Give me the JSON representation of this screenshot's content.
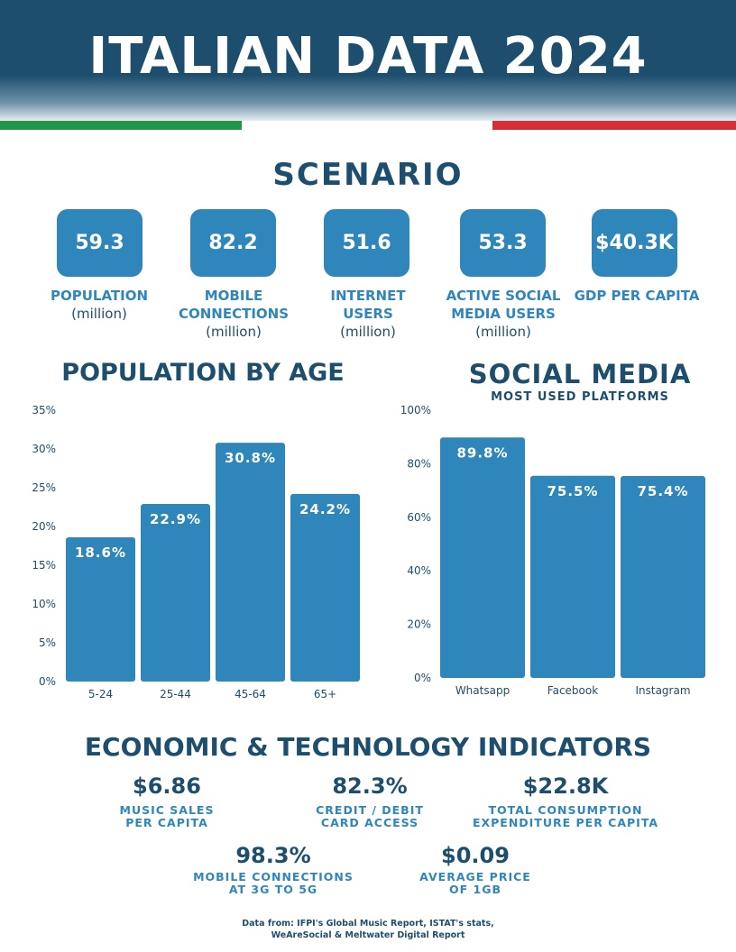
{
  "title": "ITALIAN DATA 2024",
  "colors": {
    "navy": "#1d4e6e",
    "blue": "#2e86bb",
    "flag_green": "#23954a",
    "flag_white": "#ffffff",
    "flag_red": "#d42f36"
  },
  "scenario": {
    "title": "SCENARIO",
    "stats": [
      {
        "value": "59.3",
        "label": "POPULATION",
        "unit": "(million)"
      },
      {
        "value": "82.2",
        "label": "MOBILE CONNECTIONS",
        "unit": "(million)"
      },
      {
        "value": "51.6",
        "label": "INTERNET USERS",
        "unit": "(million)"
      },
      {
        "value": "53.3",
        "label": "ACTIVE SOCIAL MEDIA USERS",
        "unit": "(million)"
      },
      {
        "value": "$40.3K",
        "label": "GDP PER CAPITA",
        "unit": ""
      }
    ]
  },
  "chart_data": [
    {
      "type": "bar",
      "title": "POPULATION BY AGE",
      "categories": [
        "5-24",
        "25-44",
        "45-64",
        "65+"
      ],
      "values": [
        18.6,
        22.9,
        30.8,
        24.2
      ],
      "value_labels": [
        "18.6%",
        "22.9%",
        "30.8%",
        "24.2%"
      ],
      "yticks": [
        "0%",
        "5%",
        "10%",
        "15%",
        "20%",
        "25%",
        "30%",
        "35%"
      ],
      "ylim": [
        0,
        35
      ],
      "grid": false
    },
    {
      "type": "bar",
      "title": "SOCIAL MEDIA",
      "subtitle": "MOST USED PLATFORMS",
      "categories": [
        "Whatsapp",
        "Facebook",
        "Instagram"
      ],
      "values": [
        89.8,
        75.5,
        75.4
      ],
      "value_labels": [
        "89.8%",
        "75.5%",
        "75.4%"
      ],
      "yticks": [
        "0%",
        "20%",
        "40%",
        "60%",
        "80%",
        "100%"
      ],
      "ylim": [
        0,
        100
      ],
      "grid": false
    }
  ],
  "indicators": {
    "title": "ECONOMIC & TECHNOLOGY INDICATORS",
    "items": [
      {
        "value": "$6.86",
        "line1": "MUSIC SALES",
        "line2": "PER CAPITA"
      },
      {
        "value": "82.3%",
        "line1": "CREDIT / DEBIT",
        "line2": "CARD ACCESS"
      },
      {
        "value": "$22.8K",
        "line1": "TOTAL CONSUMPTION",
        "line2": "EXPENDITURE PER CAPITA"
      },
      {
        "value": "98.3%",
        "line1": "MOBILE CONNECTIONS",
        "line2": "AT 3G TO 5G"
      },
      {
        "value": "$0.09",
        "line1": "AVERAGE PRICE",
        "line2": "OF 1GB"
      }
    ]
  },
  "source": {
    "line1": "Data from: IFPI's Global Music Report, ISTAT's stats,",
    "line2": "WeAreSocial & Meltwater Digital Report"
  }
}
